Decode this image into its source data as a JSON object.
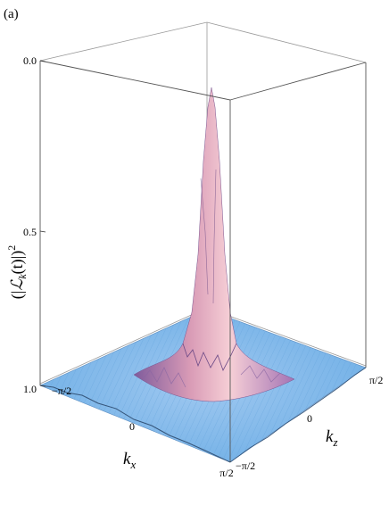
{
  "panel_label": "(a)",
  "chart_data": {
    "type": "surface3d",
    "title": "",
    "zlabel": "(|ℒk(t)|)²",
    "zlabel_parts": {
      "open": "(|",
      "script": "ℒ",
      "sub": "k",
      "mid": "(t)|)",
      "sup": "2"
    },
    "xlabel": "k",
    "xlabel_sub": "x",
    "ylabel": "k",
    "ylabel_sub": "z",
    "z_ticks": [
      "0.0",
      "0.5",
      "1.0"
    ],
    "z_tick_values": [
      0.0,
      0.5,
      1.0
    ],
    "x_ticks": [
      "−π/2",
      "0",
      "π/2"
    ],
    "y_ticks": [
      "−π/2",
      "0",
      "π/2"
    ],
    "xlim": [
      -1.5708,
      1.5708
    ],
    "ylim": [
      -1.5708,
      1.5708
    ],
    "zlim": [
      1.0,
      0.0
    ],
    "z_axis_inverted": true,
    "peak": {
      "kx": 0.0,
      "kz": 0.0,
      "value": 0.0
    },
    "baseline_value": 1.0,
    "colors": {
      "surface_base": "#7fb8ec",
      "peak_light": "#f4c6d0",
      "peak_dark": "#8a5fa0",
      "box": "#777777"
    }
  }
}
